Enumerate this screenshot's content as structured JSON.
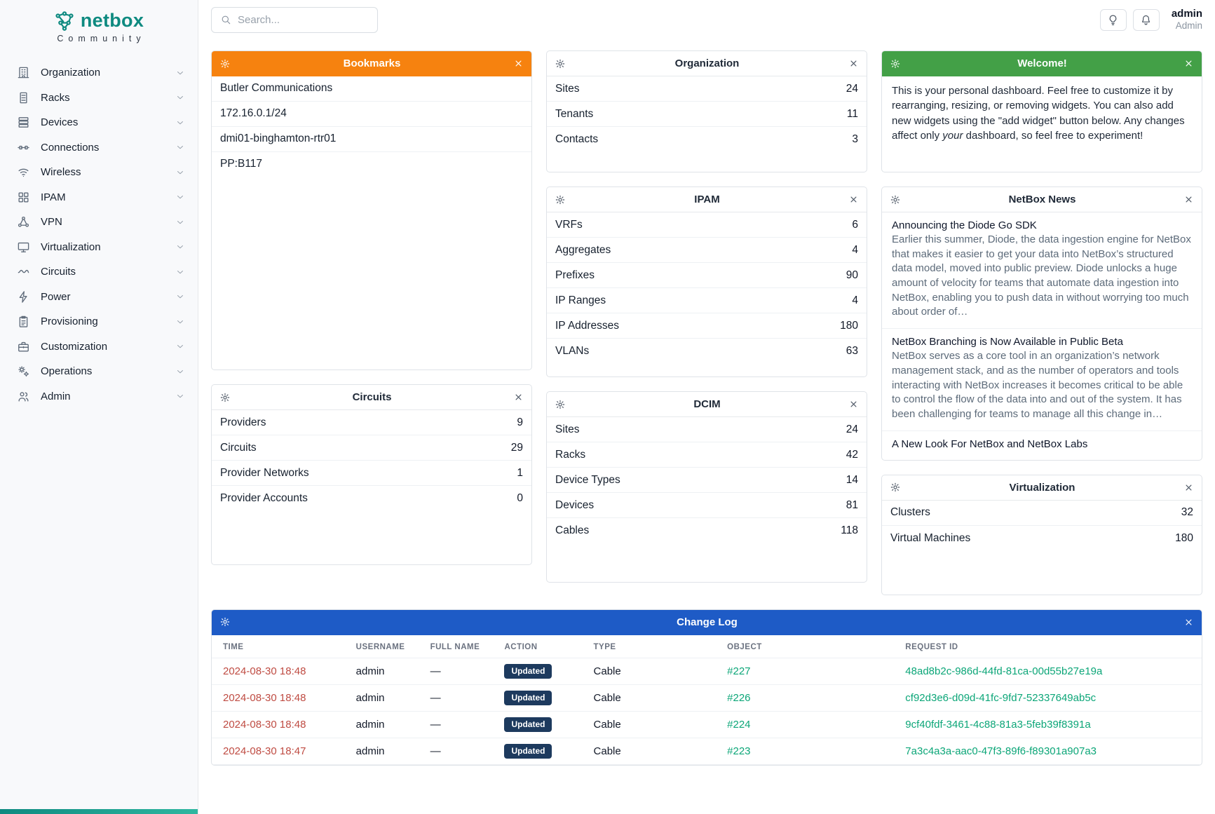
{
  "colors": {
    "brand_teal": "#0e8a80",
    "header_orange": "#f6820f",
    "header_green": "#43a047",
    "header_blue": "#1e5bc6",
    "link_teal": "#0ca678",
    "link_red": "#bf4b42",
    "badge_updated": "#1d3a5e"
  },
  "brand": {
    "name": "netbox",
    "subtitle": "Community"
  },
  "topbar": {
    "search_placeholder": "Search...",
    "user_name": "admin",
    "user_role": "Admin"
  },
  "sidebar": {
    "items": [
      {
        "label": "Organization",
        "icon": "building-icon"
      },
      {
        "label": "Racks",
        "icon": "rack-icon"
      },
      {
        "label": "Devices",
        "icon": "devices-icon"
      },
      {
        "label": "Connections",
        "icon": "cable-icon"
      },
      {
        "label": "Wireless",
        "icon": "wifi-icon"
      },
      {
        "label": "IPAM",
        "icon": "ipam-icon"
      },
      {
        "label": "VPN",
        "icon": "vpn-icon"
      },
      {
        "label": "Virtualization",
        "icon": "virtualization-icon"
      },
      {
        "label": "Circuits",
        "icon": "circuits-icon"
      },
      {
        "label": "Power",
        "icon": "power-icon"
      },
      {
        "label": "Provisioning",
        "icon": "provisioning-icon"
      },
      {
        "label": "Customization",
        "icon": "customization-icon"
      },
      {
        "label": "Operations",
        "icon": "operations-icon"
      },
      {
        "label": "Admin",
        "icon": "admin-icon"
      }
    ]
  },
  "widgets": {
    "bookmarks": {
      "title": "Bookmarks",
      "items": [
        "Butler Communications",
        "172.16.0.1/24",
        "dmi01-binghamton-rtr01",
        "PP:B117"
      ]
    },
    "organization": {
      "title": "Organization",
      "rows": [
        [
          "Sites",
          "24"
        ],
        [
          "Tenants",
          "11"
        ],
        [
          "Contacts",
          "3"
        ]
      ]
    },
    "welcome": {
      "title": "Welcome!",
      "body_pre": "This is your personal dashboard. Feel free to customize it by rearranging, resizing, or removing widgets. You can also add new widgets using the \"add widget\" button below. Any changes affect only ",
      "body_italic": "your",
      "body_post": " dashboard, so feel free to experiment!"
    },
    "ipam": {
      "title": "IPAM",
      "rows": [
        [
          "VRFs",
          "6"
        ],
        [
          "Aggregates",
          "4"
        ],
        [
          "Prefixes",
          "90"
        ],
        [
          "IP Ranges",
          "4"
        ],
        [
          "IP Addresses",
          "180"
        ],
        [
          "VLANs",
          "63"
        ]
      ]
    },
    "news": {
      "title": "NetBox News",
      "articles": [
        {
          "title": "Announcing the Diode Go SDK",
          "body": "Earlier this summer, Diode, the data ingestion engine for NetBox that makes it easier to get your data into NetBox’s structured data model, moved into public preview. Diode unlocks a huge amount of velocity for teams that automate data ingestion into NetBox, enabling you to push data in without worrying too much about order of…"
        },
        {
          "title": "NetBox Branching is Now Available in Public Beta",
          "body": "NetBox serves as a core tool in an organization’s network management stack, and as the number of operators and tools interacting with NetBox increases it becomes critical to be able to control the flow of the data into and out of the system. It has been challenging for teams to manage all this change in…"
        },
        {
          "title": "A New Look For NetBox and NetBox Labs",
          "body": ""
        }
      ]
    },
    "circuits": {
      "title": "Circuits",
      "rows": [
        [
          "Providers",
          "9"
        ],
        [
          "Circuits",
          "29"
        ],
        [
          "Provider Networks",
          "1"
        ],
        [
          "Provider Accounts",
          "0"
        ]
      ]
    },
    "dcim": {
      "title": "DCIM",
      "rows": [
        [
          "Sites",
          "24"
        ],
        [
          "Racks",
          "42"
        ],
        [
          "Device Types",
          "14"
        ],
        [
          "Devices",
          "81"
        ],
        [
          "Cables",
          "118"
        ]
      ]
    },
    "virtualization": {
      "title": "Virtualization",
      "rows": [
        [
          "Clusters",
          "32"
        ],
        [
          "Virtual Machines",
          "180"
        ]
      ]
    },
    "changelog": {
      "title": "Change Log",
      "columns": [
        "TIME",
        "USERNAME",
        "FULL NAME",
        "ACTION",
        "TYPE",
        "OBJECT",
        "REQUEST ID"
      ],
      "rows": [
        {
          "time": "2024-08-30 18:48",
          "username": "admin",
          "full_name": "—",
          "action": "Updated",
          "type": "Cable",
          "object": "#227",
          "request_id": "48ad8b2c-986d-44fd-81ca-00d55b27e19a"
        },
        {
          "time": "2024-08-30 18:48",
          "username": "admin",
          "full_name": "—",
          "action": "Updated",
          "type": "Cable",
          "object": "#226",
          "request_id": "cf92d3e6-d09d-41fc-9fd7-52337649ab5c"
        },
        {
          "time": "2024-08-30 18:48",
          "username": "admin",
          "full_name": "—",
          "action": "Updated",
          "type": "Cable",
          "object": "#224",
          "request_id": "9cf40fdf-3461-4c88-81a3-5feb39f8391a"
        },
        {
          "time": "2024-08-30 18:47",
          "username": "admin",
          "full_name": "—",
          "action": "Updated",
          "type": "Cable",
          "object": "#223",
          "request_id": "7a3c4a3a-aac0-47f3-89f6-f89301a907a3"
        }
      ]
    }
  }
}
